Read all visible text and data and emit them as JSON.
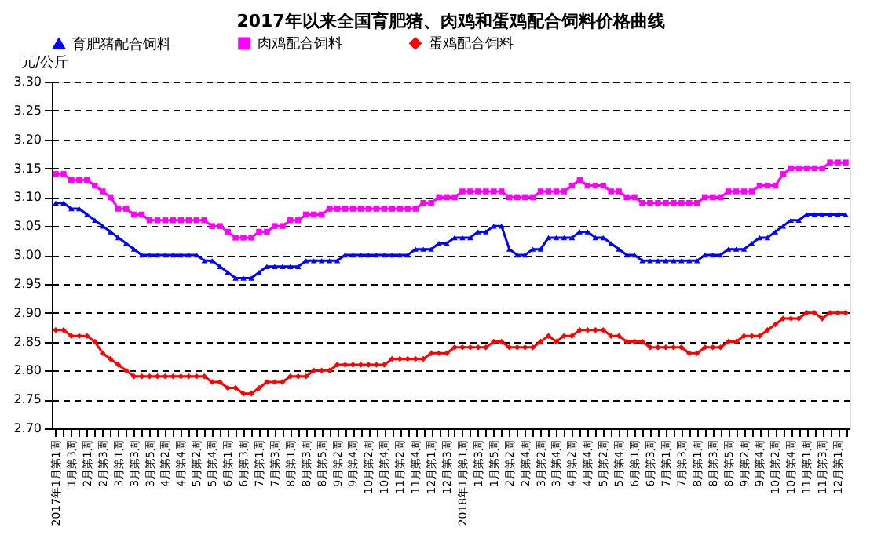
{
  "chart_data": {
    "type": "line",
    "title": "2017年以来全国育肥猪、肉鸡和蛋鸡配合饲料价格曲线",
    "ylabel": "元/公斤",
    "categories": [
      "2017年1月第1周",
      null,
      "1月第3周",
      null,
      "2月第1周",
      null,
      "2月第3周",
      null,
      "3月第1周",
      null,
      "3月第3周",
      null,
      "3月第5周",
      null,
      "4月第2周",
      null,
      "4月第4周",
      null,
      "5月第2周",
      null,
      "5月第4周",
      null,
      "6月第1周",
      null,
      "6月第3周",
      null,
      "7月第1周",
      null,
      "7月第3周",
      null,
      "8月第1周",
      null,
      "8月第3周",
      null,
      "8月第5周",
      null,
      "9月第2周",
      null,
      "9月第4周",
      null,
      "10月第2周",
      null,
      "10月第4周",
      null,
      "11月第2周",
      null,
      "11月第4周",
      null,
      "12月第1周",
      null,
      "12月第3周",
      null,
      "2018年1月第1周",
      null,
      "1月第3周",
      null,
      "1月第5周",
      null,
      "2月第2周",
      null,
      "2月第4周",
      null,
      "3月第2周",
      null,
      "3月第4周",
      null,
      "4月第2周",
      null,
      "4月第4周",
      null,
      "5月第2周",
      null,
      "5月第4周",
      null,
      "6月第1周",
      null,
      "6月第3周",
      null,
      "7月第1周",
      null,
      "7月第3周",
      null,
      "8月第1周",
      null,
      "8月第3周",
      null,
      "8月第5周",
      null,
      "9月第2周",
      null,
      "9月第4周",
      null,
      "10月第2周",
      null,
      "10月第4周",
      null,
      "11月第1周",
      null,
      "11月第3周",
      null,
      "12月第1周",
      null
    ],
    "series": [
      {
        "name": "育肥猪配合饲料",
        "color": "#0000ff",
        "marker": "triangle",
        "values": [
          3.09,
          3.09,
          3.08,
          3.08,
          3.07,
          3.06,
          3.05,
          3.04,
          3.03,
          3.02,
          3.01,
          3.0,
          3.0,
          3.0,
          3.0,
          3.0,
          3.0,
          3.0,
          3.0,
          2.99,
          2.99,
          2.98,
          2.97,
          2.96,
          2.96,
          2.96,
          2.97,
          2.98,
          2.98,
          2.98,
          2.98,
          2.98,
          2.99,
          2.99,
          2.99,
          2.99,
          2.99,
          3.0,
          3.0,
          3.0,
          3.0,
          3.0,
          3.0,
          3.0,
          3.0,
          3.0,
          3.01,
          3.01,
          3.01,
          3.02,
          3.02,
          3.03,
          3.03,
          3.03,
          3.04,
          3.04,
          3.05,
          3.05,
          3.01,
          3.0,
          3.0,
          3.01,
          3.01,
          3.03,
          3.03,
          3.03,
          3.03,
          3.04,
          3.04,
          3.03,
          3.03,
          3.02,
          3.01,
          3.0,
          3.0,
          2.99,
          2.99,
          2.99,
          2.99,
          2.99,
          2.99,
          2.99,
          2.99,
          3.0,
          3.0,
          3.0,
          3.01,
          3.01,
          3.01,
          3.02,
          3.03,
          3.03,
          3.04,
          3.05,
          3.06,
          3.06,
          3.07,
          3.07,
          3.07,
          3.07,
          3.07,
          3.07
        ]
      },
      {
        "name": "肉鸡配合饲料",
        "color": "#ff00ff",
        "marker": "square",
        "values": [
          3.14,
          3.14,
          3.13,
          3.13,
          3.13,
          3.12,
          3.11,
          3.1,
          3.08,
          3.08,
          3.07,
          3.07,
          3.06,
          3.06,
          3.06,
          3.06,
          3.06,
          3.06,
          3.06,
          3.06,
          3.05,
          3.05,
          3.04,
          3.03,
          3.03,
          3.03,
          3.04,
          3.04,
          3.05,
          3.05,
          3.06,
          3.06,
          3.07,
          3.07,
          3.07,
          3.08,
          3.08,
          3.08,
          3.08,
          3.08,
          3.08,
          3.08,
          3.08,
          3.08,
          3.08,
          3.08,
          3.08,
          3.09,
          3.09,
          3.1,
          3.1,
          3.1,
          3.11,
          3.11,
          3.11,
          3.11,
          3.11,
          3.11,
          3.1,
          3.1,
          3.1,
          3.1,
          3.11,
          3.11,
          3.11,
          3.11,
          3.12,
          3.13,
          3.12,
          3.12,
          3.12,
          3.11,
          3.11,
          3.1,
          3.1,
          3.09,
          3.09,
          3.09,
          3.09,
          3.09,
          3.09,
          3.09,
          3.09,
          3.1,
          3.1,
          3.1,
          3.11,
          3.11,
          3.11,
          3.11,
          3.12,
          3.12,
          3.12,
          3.14,
          3.15,
          3.15,
          3.15,
          3.15,
          3.15,
          3.16,
          3.16,
          3.16
        ]
      },
      {
        "name": "蛋鸡配合饲料",
        "color": "#ff0000",
        "marker": "diamond",
        "values": [
          2.87,
          2.87,
          2.86,
          2.86,
          2.86,
          2.85,
          2.83,
          2.82,
          2.81,
          2.8,
          2.79,
          2.79,
          2.79,
          2.79,
          2.79,
          2.79,
          2.79,
          2.79,
          2.79,
          2.79,
          2.78,
          2.78,
          2.77,
          2.77,
          2.76,
          2.76,
          2.77,
          2.78,
          2.78,
          2.78,
          2.79,
          2.79,
          2.79,
          2.8,
          2.8,
          2.8,
          2.81,
          2.81,
          2.81,
          2.81,
          2.81,
          2.81,
          2.81,
          2.82,
          2.82,
          2.82,
          2.82,
          2.82,
          2.83,
          2.83,
          2.83,
          2.84,
          2.84,
          2.84,
          2.84,
          2.84,
          2.85,
          2.85,
          2.84,
          2.84,
          2.84,
          2.84,
          2.85,
          2.86,
          2.85,
          2.86,
          2.86,
          2.87,
          2.87,
          2.87,
          2.87,
          2.86,
          2.86,
          2.85,
          2.85,
          2.85,
          2.84,
          2.84,
          2.84,
          2.84,
          2.84,
          2.83,
          2.83,
          2.84,
          2.84,
          2.84,
          2.85,
          2.85,
          2.86,
          2.86,
          2.86,
          2.87,
          2.88,
          2.89,
          2.89,
          2.89,
          2.9,
          2.9,
          2.89,
          2.9,
          2.9,
          2.9
        ]
      }
    ],
    "ylim": [
      2.7,
      3.3
    ],
    "yticks": [
      {
        "value": 2.7,
        "label": "2.70"
      },
      {
        "value": 2.75,
        "label": "2.75"
      },
      {
        "value": 2.8,
        "label": "2.80"
      },
      {
        "value": 2.85,
        "label": "2.85"
      },
      {
        "value": 2.9,
        "label": "2.90"
      },
      {
        "value": 2.95,
        "label": "2.95"
      },
      {
        "value": 3.0,
        "label": "3.00"
      },
      {
        "value": 3.05,
        "label": "3.05"
      },
      {
        "value": 3.1,
        "label": "3.10"
      },
      {
        "value": 3.15,
        "label": "3.15"
      },
      {
        "value": 3.2,
        "label": "3.20"
      },
      {
        "value": 3.25,
        "label": "3.25"
      },
      {
        "value": 3.3,
        "label": "3.30"
      }
    ],
    "grid": "y",
    "legend": "top",
    "line_style": "solid"
  }
}
